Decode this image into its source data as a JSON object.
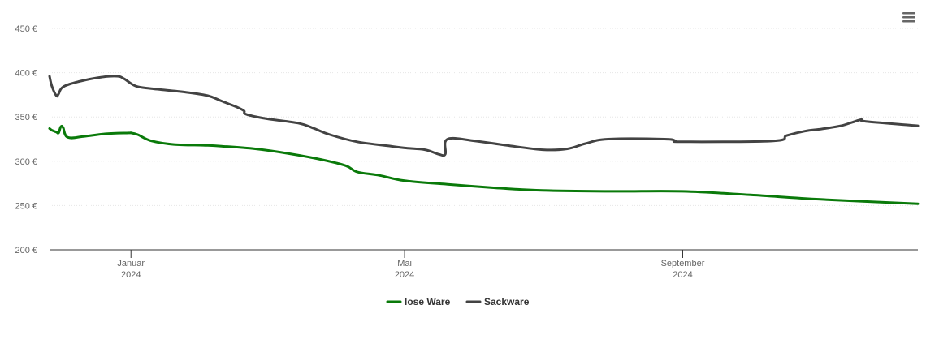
{
  "colors": {
    "lose_ware": "#0a7a0a",
    "sackware": "#434343",
    "grid": "#e6e6e6",
    "axis": "#333333",
    "menu_icon": "#666666"
  },
  "toolbar": {
    "menu_icon": "hamburger-menu-icon"
  },
  "chart_data": {
    "type": "line",
    "title": "",
    "xlabel": "",
    "ylabel": "",
    "x_type": "date",
    "xlim": [
      "2023-11-26",
      "2024-12-14"
    ],
    "ylim": [
      200,
      450
    ],
    "y_ticks": [
      200,
      250,
      300,
      350,
      400,
      450
    ],
    "y_tick_labels": [
      "200 €",
      "250 €",
      "300 €",
      "350 €",
      "400 €",
      "450 €"
    ],
    "x_ticks": [
      {
        "date": "2024-01-01",
        "line1": "Januar",
        "line2": "2024"
      },
      {
        "date": "2024-05-01",
        "line1": "Mai",
        "line2": "2024"
      },
      {
        "date": "2024-09-01",
        "line1": "September",
        "line2": "2024"
      }
    ],
    "grid": true,
    "legend_position": "bottom-center",
    "series": [
      {
        "name": "lose Ware",
        "color": "#0a7a0a",
        "points": [
          [
            "2023-11-26",
            337
          ],
          [
            "2023-11-27",
            335
          ],
          [
            "2023-11-29",
            333
          ],
          [
            "2023-11-30",
            332
          ],
          [
            "2023-12-01",
            339
          ],
          [
            "2023-12-02",
            338
          ],
          [
            "2023-12-04",
            327
          ],
          [
            "2023-12-11",
            328
          ],
          [
            "2023-12-21",
            331
          ],
          [
            "2023-12-31",
            332
          ],
          [
            "2024-01-01",
            332
          ],
          [
            "2024-01-04",
            330
          ],
          [
            "2024-01-10",
            323
          ],
          [
            "2024-01-20",
            319
          ],
          [
            "2024-02-02",
            318
          ],
          [
            "2024-02-10",
            317
          ],
          [
            "2024-02-25",
            314
          ],
          [
            "2024-03-10",
            309
          ],
          [
            "2024-03-25",
            302
          ],
          [
            "2024-04-05",
            295
          ],
          [
            "2024-04-10",
            288
          ],
          [
            "2024-04-20",
            284
          ],
          [
            "2024-05-01",
            278
          ],
          [
            "2024-05-20",
            274
          ],
          [
            "2024-06-10",
            270
          ],
          [
            "2024-07-01",
            267
          ],
          [
            "2024-08-01",
            266
          ],
          [
            "2024-09-01",
            266
          ],
          [
            "2024-10-01",
            262
          ],
          [
            "2024-11-01",
            257
          ],
          [
            "2024-12-14",
            252
          ]
        ]
      },
      {
        "name": "Sackware",
        "color": "#434343",
        "points": [
          [
            "2023-11-26",
            396
          ],
          [
            "2023-11-27",
            385
          ],
          [
            "2023-11-29",
            374
          ],
          [
            "2023-11-30",
            376
          ],
          [
            "2023-12-02",
            384
          ],
          [
            "2023-12-09",
            390
          ],
          [
            "2023-12-19",
            395
          ],
          [
            "2023-12-26",
            396
          ],
          [
            "2023-12-29",
            393
          ],
          [
            "2024-01-03",
            385
          ],
          [
            "2024-01-10",
            382
          ],
          [
            "2024-01-25",
            378
          ],
          [
            "2024-02-04",
            374
          ],
          [
            "2024-02-10",
            368
          ],
          [
            "2024-02-17",
            361
          ],
          [
            "2024-02-20",
            357
          ],
          [
            "2024-02-21",
            353
          ],
          [
            "2024-03-01",
            348
          ],
          [
            "2024-03-15",
            343
          ],
          [
            "2024-03-22",
            337
          ],
          [
            "2024-03-29",
            330
          ],
          [
            "2024-04-10",
            322
          ],
          [
            "2024-04-25",
            317
          ],
          [
            "2024-05-01",
            315
          ],
          [
            "2024-05-10",
            313
          ],
          [
            "2024-05-16",
            308
          ],
          [
            "2024-05-19",
            308
          ],
          [
            "2024-05-20",
            325
          ],
          [
            "2024-06-01",
            323
          ],
          [
            "2024-06-15",
            318
          ],
          [
            "2024-07-01",
            313
          ],
          [
            "2024-07-12",
            314
          ],
          [
            "2024-07-20",
            320
          ],
          [
            "2024-07-30",
            325
          ],
          [
            "2024-08-24",
            325
          ],
          [
            "2024-08-29",
            323
          ],
          [
            "2024-09-01",
            322
          ],
          [
            "2024-10-11",
            323
          ],
          [
            "2024-10-17",
            329
          ],
          [
            "2024-10-25",
            334
          ],
          [
            "2024-10-31",
            336
          ],
          [
            "2024-11-03",
            337
          ],
          [
            "2024-11-10",
            340
          ],
          [
            "2024-11-15",
            344
          ],
          [
            "2024-11-19",
            347
          ],
          [
            "2024-11-21",
            345
          ],
          [
            "2024-12-14",
            340
          ]
        ]
      }
    ]
  }
}
